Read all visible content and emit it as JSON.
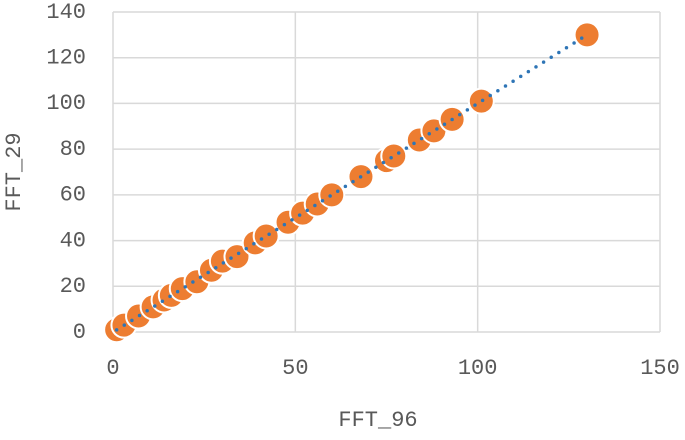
{
  "chart_data": {
    "type": "scatter",
    "x_label": "FFT_96",
    "y_label": "FFT_29",
    "series": [
      {
        "color": "#ed7d31",
        "x": [
          1,
          3,
          7,
          11,
          14,
          16,
          19,
          23,
          27,
          30,
          34,
          39,
          42,
          48,
          52,
          56,
          60,
          68,
          75,
          77,
          84,
          88,
          93,
          101,
          130
        ],
        "y": [
          1,
          3,
          7,
          11,
          14,
          16,
          19,
          22,
          27,
          31,
          33,
          39,
          42,
          48,
          52,
          56,
          60,
          68,
          75,
          77,
          84,
          88,
          93,
          101,
          130
        ]
      }
    ],
    "trendline": {
      "kind": "linear",
      "color": "#2e75b6"
    },
    "xlim": [
      0,
      150
    ],
    "xticks": [
      0,
      50,
      100,
      150
    ],
    "ylim": [
      0,
      140
    ],
    "yticks": [
      0,
      20,
      40,
      60,
      80,
      100,
      120,
      140
    ],
    "grid": true
  }
}
